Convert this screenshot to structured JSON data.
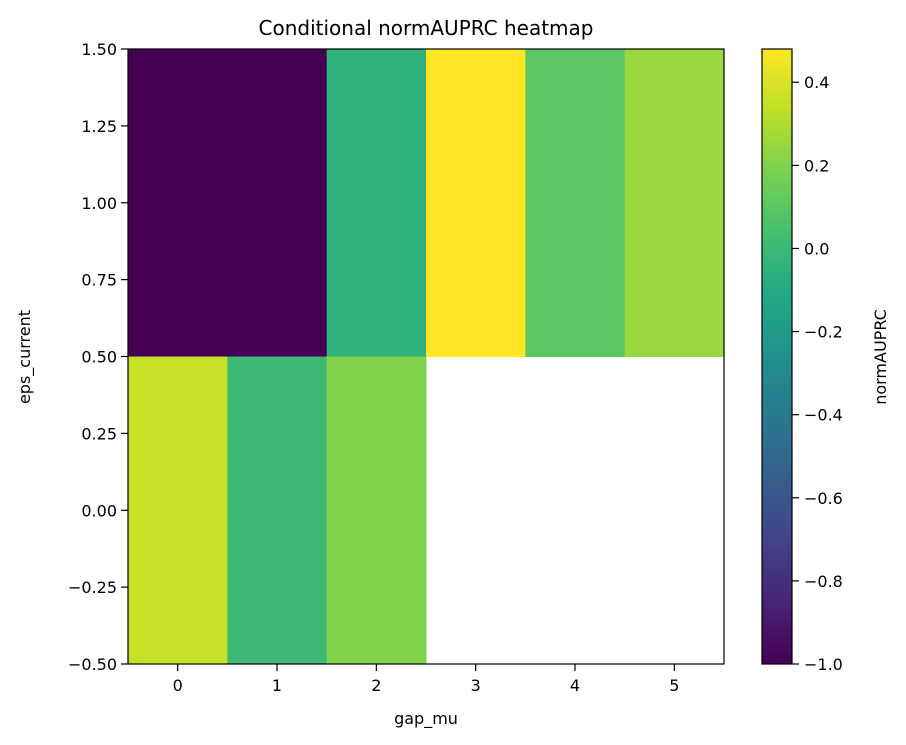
{
  "chart_data": {
    "type": "heatmap",
    "title": "Conditional normAUPRC heatmap",
    "xlabel": "gap_mu",
    "ylabel": "eps_current",
    "x_categories": [
      "0",
      "1",
      "2",
      "3",
      "4",
      "5"
    ],
    "y_categories": [
      "1.0",
      "0.0"
    ],
    "xlim": [
      -0.5,
      5.5
    ],
    "ylim": [
      -0.5,
      1.5
    ],
    "x_ticks": [
      0,
      1,
      2,
      3,
      4,
      5
    ],
    "x_tick_labels": [
      "0",
      "1",
      "2",
      "3",
      "4",
      "5"
    ],
    "y_ticks": [
      1.5,
      1.25,
      1.0,
      0.75,
      0.5,
      0.25,
      0.0,
      -0.25,
      -0.5
    ],
    "y_tick_labels": [
      "1.50",
      "1.25",
      "1.00",
      "0.75",
      "0.50",
      "0.25",
      "0.00",
      "−0.25",
      "−0.50"
    ],
    "values": [
      [
        -1.0,
        -1.0,
        -0.05,
        0.48,
        0.1,
        0.25
      ],
      [
        0.35,
        0.0,
        0.2,
        null,
        null,
        null
      ]
    ],
    "colorbar": {
      "label": "normAUPRC",
      "colormap": "viridis",
      "range": [
        -1.0,
        0.48
      ],
      "ticks": [
        0.4,
        0.2,
        0.0,
        -0.2,
        -0.4,
        -0.6,
        -0.8,
        -1.0
      ],
      "tick_labels": [
        "0.4",
        "0.2",
        "0.0",
        "−0.2",
        "−0.4",
        "−0.6",
        "−0.8",
        "−1.0"
      ]
    },
    "grid": false
  }
}
